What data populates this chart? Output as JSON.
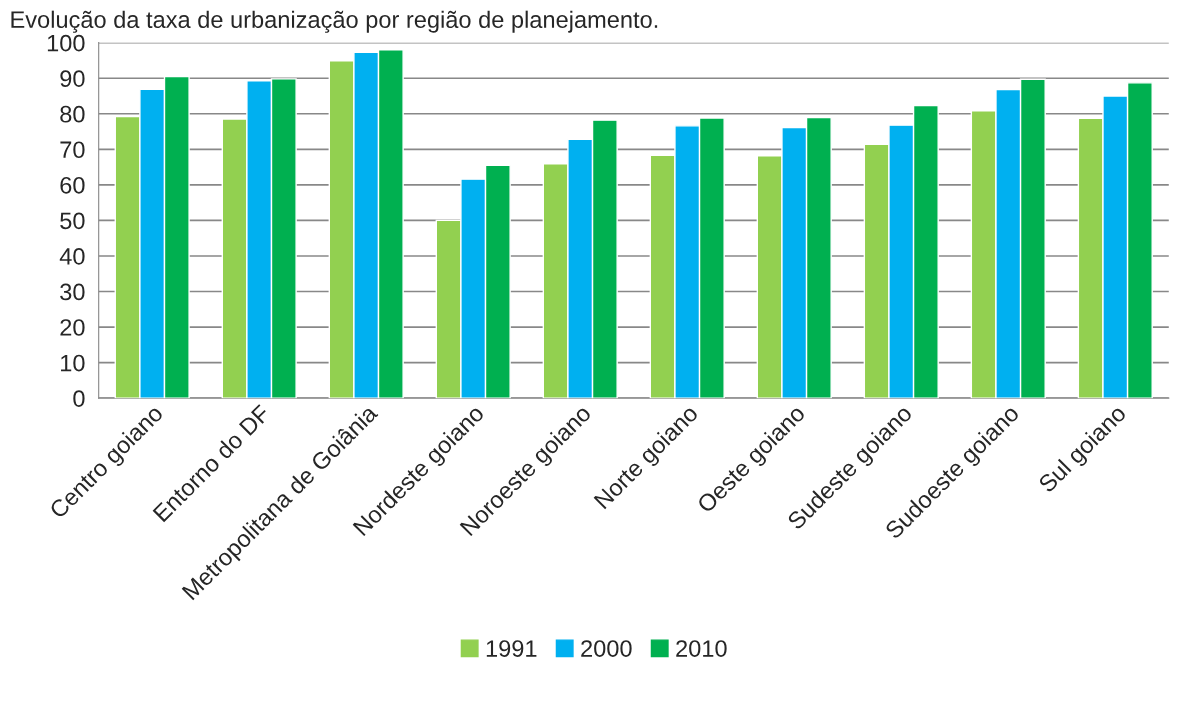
{
  "chart_data": {
    "type": "bar",
    "title": "Evolução da taxa de urbanização por região de planejamento.",
    "categories": [
      "Centro goiano",
      "Entorno do DF",
      "Metropolitana de Goiânia",
      "Nordeste goiano",
      "Noroeste goiano",
      "Norte goiano",
      "Oeste goiano",
      "Sudeste goiano",
      "Sudoeste goiano",
      "Sul goiano"
    ],
    "series": [
      {
        "name": "1991",
        "color": "#92d050",
        "values": [
          79.2,
          78.5,
          94.9,
          50.0,
          65.9,
          68.3,
          68.2,
          71.4,
          80.8,
          78.7
        ]
      },
      {
        "name": "2000",
        "color": "#00b0f0",
        "values": [
          86.9,
          89.3,
          97.3,
          61.6,
          72.8,
          76.6,
          76.1,
          76.8,
          86.8,
          85.0
        ]
      },
      {
        "name": "2010",
        "color": "#00b050",
        "values": [
          90.5,
          89.8,
          98.0,
          65.5,
          78.2,
          78.8,
          78.9,
          82.3,
          89.7,
          88.7
        ]
      }
    ],
    "ylim": [
      0,
      100
    ],
    "yticks": [
      0,
      10,
      20,
      30,
      40,
      50,
      60,
      70,
      80,
      90,
      100
    ],
    "grid": "y",
    "legend": "bottom"
  }
}
